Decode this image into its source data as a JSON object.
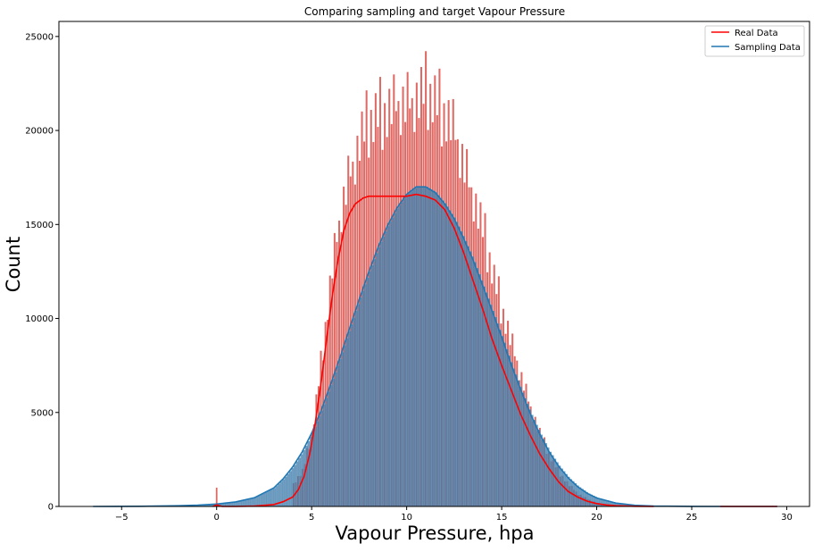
{
  "chart_data": {
    "type": "histogram",
    "title": "Comparing sampling and target Vapour Pressure",
    "xlabel": "Vapour Pressure, hpa",
    "ylabel": "Count",
    "xlim": [
      -8.3,
      31.2
    ],
    "ylim": [
      0,
      25800
    ],
    "xticks": [
      -5,
      0,
      5,
      10,
      15,
      20,
      25,
      30
    ],
    "xtick_labels": [
      "−5",
      "0",
      "5",
      "10",
      "15",
      "20",
      "25",
      "30"
    ],
    "yticks": [
      0,
      5000,
      10000,
      15000,
      20000,
      25000
    ],
    "ytick_labels": [
      "0",
      "5000",
      "10000",
      "15000",
      "20000",
      "25000"
    ],
    "grid": false,
    "legend_position": "top-right",
    "bin_width": 0.12,
    "series": [
      {
        "name": "Real Data",
        "line_color": "#ff0000",
        "bar_color": "#d9504a",
        "kde": {
          "x": [
            -0.2,
            0,
            0.3,
            1,
            2,
            3,
            3.5,
            4,
            4.3,
            4.6,
            4.9,
            5.2,
            5.5,
            5.8,
            6.1,
            6.4,
            6.7,
            7.0,
            7.3,
            7.7,
            8.0,
            8.4,
            9.0,
            10.0,
            10.5,
            11.0,
            11.5,
            12.0,
            12.5,
            13.0,
            13.5,
            14.0,
            14.5,
            15.0,
            15.5,
            16.0,
            16.5,
            17.0,
            17.5,
            18.0,
            18.5,
            19.0,
            19.5,
            20.0,
            20.5,
            21.0,
            22.0,
            23.0
          ],
          "y": [
            0,
            80,
            0,
            0,
            20,
            100,
            250,
            500,
            900,
            1600,
            2800,
            4500,
            6600,
            9000,
            11300,
            13200,
            14700,
            15600,
            16100,
            16400,
            16500,
            16500,
            16500,
            16500,
            16600,
            16500,
            16300,
            15800,
            14800,
            13500,
            12000,
            10500,
            8900,
            7500,
            6200,
            4900,
            3800,
            2800,
            2000,
            1300,
            800,
            500,
            280,
            150,
            80,
            40,
            10,
            0
          ]
        },
        "kde_tail": {
          "x": [
            26.5,
            29.5
          ],
          "y": [
            0,
            0
          ]
        },
        "histogram": {
          "x": [
            0,
            4.0,
            4.5,
            5.0,
            5.5,
            6.0,
            6.5,
            7.0,
            7.5,
            8.0,
            8.5,
            9.0,
            9.5,
            10.0,
            10.5,
            11.0,
            11.5,
            12.0,
            12.5,
            13.0,
            13.5,
            14.0,
            14.5,
            15.0,
            15.5,
            16.0,
            16.5,
            17.0,
            17.5,
            18.0,
            18.5,
            19.0,
            19.5,
            20.0,
            20.5,
            21.0,
            21.5
          ],
          "y": [
            1000,
            1300,
            2000,
            4200,
            8500,
            13000,
            16500,
            18800,
            20500,
            21500,
            22000,
            22200,
            22400,
            22600,
            22900,
            23200,
            22700,
            22000,
            20800,
            19000,
            17300,
            15300,
            13000,
            11000,
            9000,
            7200,
            5500,
            4000,
            2800,
            1900,
            1200,
            700,
            400,
            200,
            90,
            40,
            10
          ]
        }
      },
      {
        "name": "Sampling Data",
        "line_color": "#1f77b4",
        "bar_color": "#3a78a8",
        "kde": {
          "x": [
            -6.5,
            -4,
            -2,
            -1,
            0,
            1,
            2,
            3,
            3.5,
            4,
            4.5,
            5,
            5.5,
            6,
            6.5,
            7,
            7.5,
            8,
            8.5,
            9,
            9.5,
            10,
            10.5,
            11,
            11.5,
            12,
            12.5,
            13,
            13.5,
            14,
            14.5,
            15,
            15.5,
            16,
            16.5,
            17,
            17.5,
            18,
            18.5,
            19,
            19.5,
            20,
            21,
            22,
            23,
            25,
            27,
            29.5
          ],
          "y": [
            0,
            10,
            40,
            70,
            130,
            240,
            470,
            980,
            1470,
            2100,
            2900,
            3900,
            5100,
            6500,
            7950,
            9500,
            11000,
            12450,
            13800,
            14950,
            15900,
            16600,
            17000,
            17000,
            16700,
            16100,
            15300,
            14250,
            13100,
            11750,
            10400,
            9000,
            7550,
            6200,
            4950,
            3850,
            2900,
            2130,
            1520,
            1050,
            700,
            450,
            180,
            60,
            20,
            5,
            0,
            0
          ]
        }
      }
    ]
  }
}
